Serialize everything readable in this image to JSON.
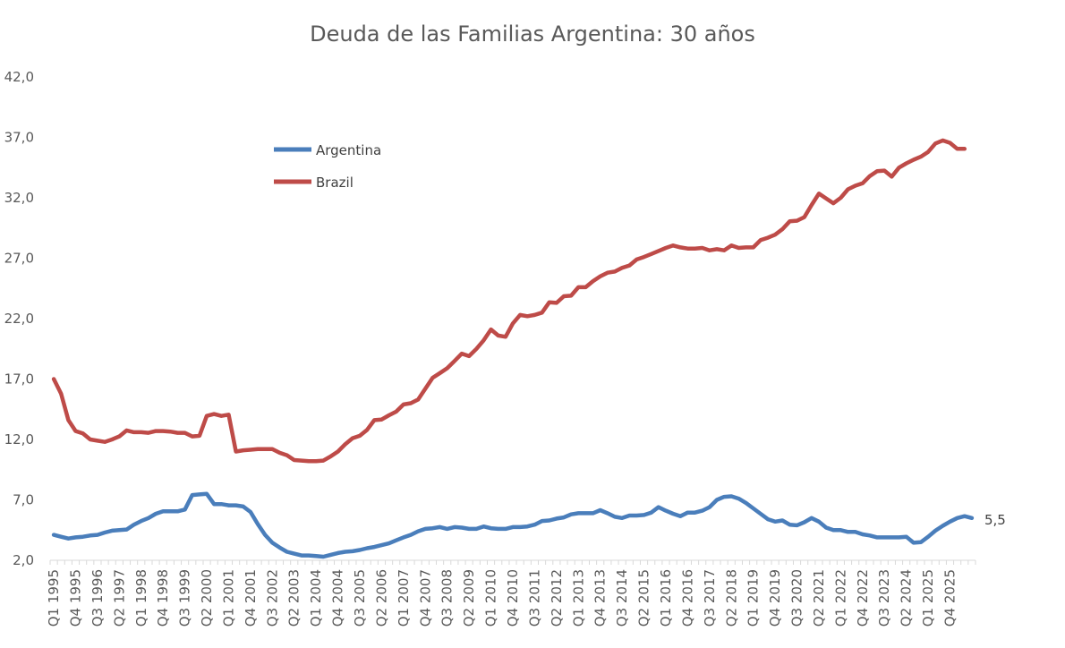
{
  "chart_data": {
    "type": "line",
    "title": "Deuda de las Familias Argentina: 30 años",
    "xlabel": "",
    "ylabel": "",
    "ylim": [
      2.0,
      42.0
    ],
    "y_ticks": [
      "42,0",
      "37,0",
      "32,0",
      "27,0",
      "22,0",
      "17,0",
      "12,0",
      "7,0",
      "2,0"
    ],
    "x_tick_labels": [
      "Q1 1995",
      "Q4 1995",
      "Q3 1996",
      "Q2 1997",
      "Q1 1998",
      "Q4 1998",
      "Q3 1999",
      "Q2 2000",
      "Q1 2001",
      "Q4 2001",
      "Q3 2002",
      "Q2 2003",
      "Q1 2004",
      "Q4 2004",
      "Q3 2005",
      "Q2 2006",
      "Q1 2007",
      "Q4 2007",
      "Q3 2008",
      "Q2 2009",
      "Q1 2010",
      "Q4 2010",
      "Q3 2011",
      "Q2 2012",
      "Q1 2013",
      "Q4 2013",
      "Q3 2014",
      "Q2 2015",
      "Q1 2016",
      "Q4 2016",
      "Q3 2017",
      "Q2 2018",
      "Q1 2019",
      "Q4 2019",
      "Q3 2020",
      "Q2 2021",
      "Q1 2022",
      "Q4 2022",
      "Q3 2023",
      "Q2 2024",
      "Q1 2025",
      "Q4 2025"
    ],
    "grid": false,
    "legend_position": "top-left",
    "end_label": "5,5",
    "series": [
      {
        "name": "Argentina",
        "color": "#4a7ebb",
        "values": [
          4.1,
          3.95,
          3.8,
          3.9,
          3.95,
          4.05,
          4.1,
          4.3,
          4.45,
          4.5,
          4.55,
          4.95,
          5.25,
          5.5,
          5.85,
          6.05,
          6.05,
          6.05,
          6.2,
          7.4,
          7.45,
          7.5,
          6.65,
          6.65,
          6.55,
          6.55,
          6.45,
          6.0,
          5.0,
          4.1,
          3.45,
          3.05,
          2.7,
          2.55,
          2.4,
          2.4,
          2.35,
          2.3,
          2.45,
          2.6,
          2.7,
          2.75,
          2.85,
          3.0,
          3.1,
          3.25,
          3.4,
          3.65,
          3.9,
          4.1,
          4.4,
          4.6,
          4.65,
          4.75,
          4.6,
          4.75,
          4.7,
          4.6,
          4.6,
          4.8,
          4.65,
          4.6,
          4.6,
          4.75,
          4.75,
          4.8,
          4.95,
          5.25,
          5.3,
          5.45,
          5.55,
          5.8,
          5.9,
          5.9,
          5.9,
          6.15,
          5.9,
          5.6,
          5.5,
          5.7,
          5.7,
          5.75,
          5.95,
          6.4,
          6.1,
          5.85,
          5.65,
          5.95,
          5.95,
          6.1,
          6.4,
          7.0,
          7.25,
          7.3,
          7.1,
          6.75,
          6.3,
          5.85,
          5.4,
          5.2,
          5.3,
          4.95,
          4.9,
          5.15,
          5.5,
          5.2,
          4.7,
          4.5,
          4.5,
          4.35,
          4.35,
          4.15,
          4.05,
          3.9,
          3.9,
          3.9,
          3.9,
          3.95,
          3.45,
          3.5,
          3.95,
          4.45,
          4.85,
          5.2,
          5.5,
          5.65,
          5.5
        ]
      },
      {
        "name": "Brazil",
        "color": "#be4b48",
        "values": [
          17.0,
          15.8,
          13.6,
          12.7,
          12.5,
          12.0,
          11.9,
          11.8,
          12.0,
          12.25,
          12.75,
          12.6,
          12.6,
          12.55,
          12.7,
          12.7,
          12.65,
          12.55,
          12.55,
          12.25,
          12.3,
          13.95,
          14.1,
          13.95,
          14.05,
          11.0,
          11.1,
          11.15,
          11.2,
          11.2,
          11.2,
          10.9,
          10.7,
          10.3,
          10.25,
          10.2,
          10.2,
          10.25,
          10.6,
          11.0,
          11.6,
          12.1,
          12.3,
          12.8,
          13.6,
          13.65,
          14.0,
          14.3,
          14.9,
          15.0,
          15.3,
          16.2,
          17.1,
          17.5,
          17.9,
          18.5,
          19.1,
          18.9,
          19.5,
          20.2,
          21.1,
          20.6,
          20.5,
          21.6,
          22.3,
          22.2,
          22.3,
          22.5,
          23.35,
          23.3,
          23.85,
          23.9,
          24.6,
          24.6,
          25.1,
          25.5,
          25.8,
          25.9,
          26.2,
          26.4,
          26.9,
          27.1,
          27.35,
          27.6,
          27.85,
          28.05,
          27.9,
          27.8,
          27.8,
          27.85,
          27.65,
          27.75,
          27.65,
          28.05,
          27.85,
          27.9,
          27.9,
          28.5,
          28.7,
          28.95,
          29.4,
          30.05,
          30.1,
          30.4,
          31.4,
          32.35,
          31.95,
          31.55,
          32.0,
          32.7,
          33.0,
          33.2,
          33.8,
          34.2,
          34.25,
          33.75,
          34.5,
          34.85,
          35.15,
          35.4,
          35.8,
          36.5,
          36.75,
          36.55,
          36.05,
          36.05
        ]
      }
    ]
  }
}
